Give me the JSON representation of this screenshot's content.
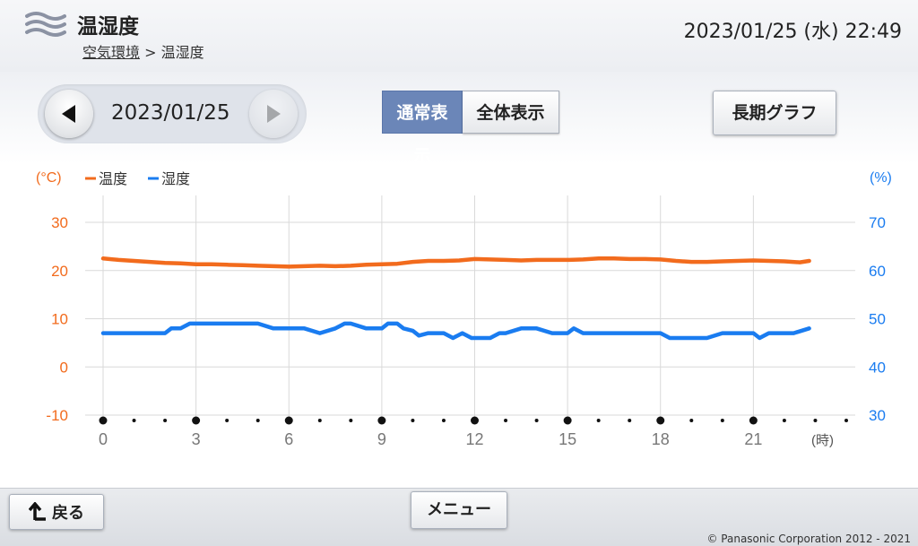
{
  "header": {
    "title": "温湿度",
    "breadcrumb_link": "空気環境",
    "breadcrumb_sep": ">",
    "breadcrumb_current": "温湿度",
    "datetime": "2023/01/25 (水) 22:49",
    "icon": "air-waves-icon"
  },
  "date_nav": {
    "date": "2023/01/25",
    "prev_icon": "triangle-left-icon",
    "next_icon": "triangle-right-icon",
    "next_enabled": false
  },
  "view_toggle": {
    "normal_label": "通常表示",
    "full_label": "全体表示",
    "active": "normal"
  },
  "long_graph_label": "長期グラフ",
  "footer": {
    "back_label": "戻る",
    "back_icon": "return-arrow-icon",
    "menu_label": "メニュー",
    "copyright": "© Panasonic Corporation 2012 - 2021"
  },
  "colors": {
    "temperature": "#f26b1d",
    "humidity": "#1a7cf0",
    "grid": "#d9d9d9",
    "active_toggle": "#6b86b8"
  },
  "chart_data": {
    "type": "line",
    "y_left_unit": "(°C)",
    "y_right_unit": "(%)",
    "x_unit": "(時)",
    "y_left_ticks": [
      "30",
      "20",
      "10",
      "0",
      "-10"
    ],
    "y_right_ticks": [
      "70",
      "60",
      "50",
      "40",
      "30"
    ],
    "x_ticks": [
      "0",
      "3",
      "6",
      "9",
      "12",
      "15",
      "18",
      "21"
    ],
    "ylim_left": [
      -10,
      30
    ],
    "ylim_right": [
      30,
      70
    ],
    "xlim": [
      0,
      24
    ],
    "grid": true,
    "legend_position": "top-left",
    "series": [
      {
        "name": "温度",
        "axis": "left",
        "color": "#f26b1d",
        "x": [
          0,
          0.5,
          1,
          1.5,
          2,
          2.5,
          3,
          3.5,
          4,
          4.5,
          5,
          5.5,
          6,
          6.5,
          7,
          7.5,
          8,
          8.5,
          9,
          9.5,
          10,
          10.5,
          11,
          11.5,
          12,
          12.5,
          13,
          13.5,
          14,
          14.5,
          15,
          15.5,
          16,
          16.5,
          17,
          17.5,
          18,
          18.5,
          19,
          19.5,
          20,
          20.5,
          21,
          21.5,
          22,
          22.5,
          22.8
        ],
        "y": [
          22.5,
          22.2,
          22.0,
          21.8,
          21.6,
          21.5,
          21.3,
          21.3,
          21.2,
          21.1,
          21.0,
          20.9,
          20.8,
          20.9,
          21.0,
          20.9,
          21.0,
          21.2,
          21.3,
          21.4,
          21.8,
          22.0,
          22.0,
          22.1,
          22.4,
          22.3,
          22.2,
          22.1,
          22.2,
          22.2,
          22.2,
          22.3,
          22.5,
          22.5,
          22.4,
          22.4,
          22.3,
          22.0,
          21.8,
          21.8,
          21.9,
          22.0,
          22.1,
          22.0,
          21.9,
          21.7,
          22.0
        ]
      },
      {
        "name": "湿度",
        "axis": "right",
        "color": "#1a7cf0",
        "x": [
          0,
          0.5,
          1,
          1.5,
          2,
          2.2,
          2.5,
          2.8,
          3,
          3.5,
          4,
          4.5,
          5,
          5.5,
          6,
          6.5,
          7,
          7.5,
          7.8,
          8,
          8.5,
          9,
          9.2,
          9.5,
          9.7,
          10,
          10.2,
          10.5,
          11,
          11.3,
          11.6,
          11.9,
          12.5,
          12.8,
          13,
          13.5,
          14,
          14.5,
          15,
          15.2,
          15.5,
          16,
          17,
          18,
          18.3,
          19,
          19.5,
          20,
          20.5,
          21,
          21.2,
          21.5,
          22,
          22.3,
          22.8
        ],
        "y": [
          47,
          47,
          47,
          47,
          47,
          48,
          48,
          49,
          49,
          49,
          49,
          49,
          49,
          48,
          48,
          48,
          47,
          48,
          49,
          49,
          48,
          48,
          49,
          49,
          48,
          47.5,
          46.5,
          47,
          47,
          46,
          47,
          46,
          46,
          47,
          47,
          48,
          48,
          47,
          47,
          48,
          47,
          47,
          47,
          47,
          46,
          46,
          46,
          47,
          47,
          47,
          46,
          47,
          47,
          47,
          48
        ]
      }
    ]
  }
}
